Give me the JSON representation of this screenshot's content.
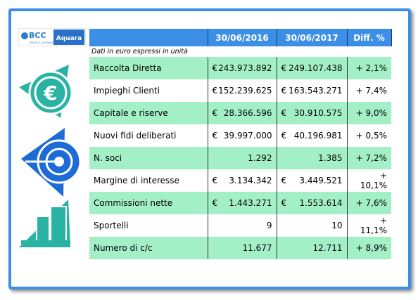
{
  "logo": {
    "brand": "BCC",
    "tagline": "CREDITO COOPERATIVO",
    "branch": "Aquara"
  },
  "table": {
    "columns": [
      "30/06/2016",
      "30/06/2017",
      "Diff. %"
    ],
    "note": "Dati in euro espressi in unità",
    "rows": [
      {
        "label": "Raccolta Diretta",
        "y2016": {
          "currency": "€",
          "amount": "243.973.892"
        },
        "y2017": {
          "currency": "€",
          "amount": "249.107.438"
        },
        "diff": "+ 2,1%"
      },
      {
        "label": "Impieghi Clienti",
        "y2016": {
          "currency": "€",
          "amount": "152.239.625"
        },
        "y2017": {
          "currency": "€",
          "amount": "163.543.271"
        },
        "diff": "+ 7,4%"
      },
      {
        "label": "Capitale e riserve",
        "y2016": {
          "currency": "€",
          "amount": "28.366.596"
        },
        "y2017": {
          "currency": "€",
          "amount": "30.910.575"
        },
        "diff": "+ 9,0%"
      },
      {
        "label": "Nuovi fidi deliberati",
        "y2016": {
          "currency": "€",
          "amount": "39.997.000"
        },
        "y2017": {
          "currency": "€",
          "amount": "40.196.981"
        },
        "diff": "+ 0,5%"
      },
      {
        "label": "N. soci",
        "y2016": {
          "amount": "1.292"
        },
        "y2017": {
          "amount": "1.385"
        },
        "diff": "+ 7,2%"
      },
      {
        "label": "Margine di interesse",
        "y2016": {
          "currency": "€",
          "amount": "3.134.342"
        },
        "y2017": {
          "currency": "€",
          "amount": "3.449.521"
        },
        "diff": "+ 10,1%"
      },
      {
        "label": "Commissioni nette",
        "y2016": {
          "currency": "€",
          "amount": "1.443.271"
        },
        "y2017": {
          "currency": "€",
          "amount": "1.553.614"
        },
        "diff": "+ 7,6%"
      },
      {
        "label": "Sportelli",
        "y2016": {
          "amount": "9"
        },
        "y2017": {
          "amount": "10"
        },
        "diff": "+ 11,1%"
      },
      {
        "label": "Numero di c/c",
        "y2016": {
          "amount": "11.677"
        },
        "y2017": {
          "amount": "12.711"
        },
        "diff": "+ 8,9%"
      }
    ]
  }
}
